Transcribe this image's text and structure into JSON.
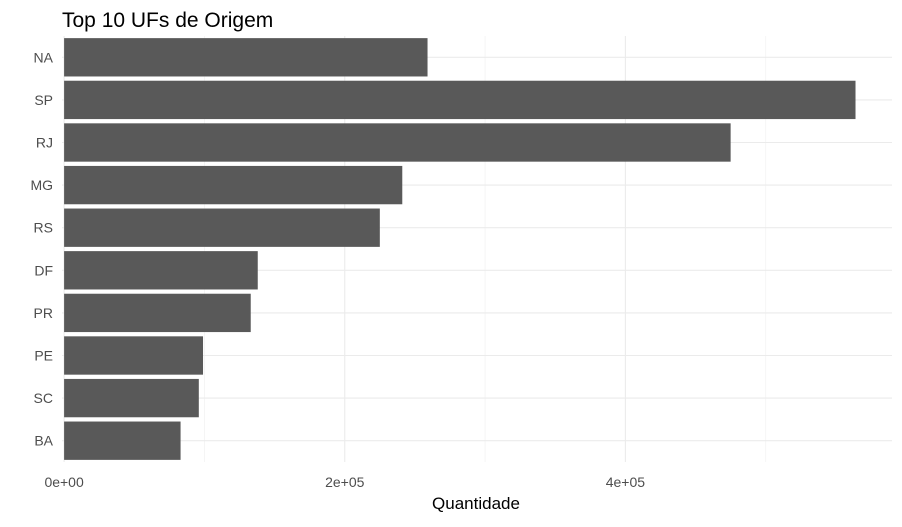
{
  "chart_data": {
    "type": "bar",
    "orientation": "horizontal",
    "title": "Top 10 UFs de Origem",
    "xlabel": "Quantidade",
    "ylabel": "",
    "categories": [
      "NA",
      "SP",
      "RJ",
      "MG",
      "RS",
      "DF",
      "PR",
      "PE",
      "SC",
      "BA"
    ],
    "values": [
      259000,
      564000,
      475000,
      241000,
      225000,
      138000,
      133000,
      99000,
      96000,
      83000
    ],
    "xlim": [
      -1500,
      590000
    ],
    "xticks": [
      {
        "value": 0,
        "label": "0e+00"
      },
      {
        "value": 200000,
        "label": "2e+05"
      },
      {
        "value": 400000,
        "label": "4e+05"
      }
    ],
    "minor_xticks": [
      100000,
      300000,
      500000
    ],
    "grid": true,
    "legend": "none",
    "bar_color": "#595959"
  }
}
